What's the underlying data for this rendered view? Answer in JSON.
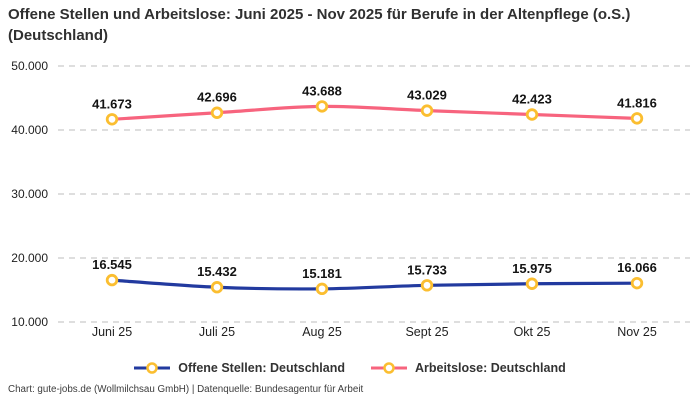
{
  "header": {
    "title": "Offene Stellen und Arbeitslose: Juni 2025 - Nov 2025 für Berufe in der Altenpflege (o.S.) (Deutschland)"
  },
  "footer": {
    "attribution": "Chart: gute-jobs.de (Wollmilchsau GmbH) | Datenquelle: Bundesagentur für Arbeit"
  },
  "colors": {
    "open_positions_line": "#223a9f",
    "unemployed_line": "#f7647e",
    "marker_ring": "#fbbe30",
    "marker_fill": "#ffffff",
    "gridline": "#c9c9c9",
    "title_text": "#303030",
    "background": "#ffffff"
  },
  "legend": {
    "items": [
      {
        "label": "Offene Stellen: Deutschland",
        "color": "#223a9f"
      },
      {
        "label": "Arbeitslose: Deutschland",
        "color": "#f7647e"
      }
    ]
  },
  "chart_data": {
    "type": "line",
    "title": "Offene Stellen und Arbeitslose: Juni 2025 - Nov 2025 für Berufe in der Altenpflege (o.S.) (Deutschland)",
    "categories": [
      "Juni 25",
      "Juli 25",
      "Aug 25",
      "Sept 25",
      "Okt 25",
      "Nov 25"
    ],
    "series": [
      {
        "name": "Offene Stellen: Deutschland",
        "color": "#223a9f",
        "values": [
          16545,
          15432,
          15181,
          15733,
          15975,
          16066
        ],
        "labels": [
          "16.545",
          "15.432",
          "15.181",
          "15.733",
          "15.975",
          "16.066"
        ]
      },
      {
        "name": "Arbeitslose: Deutschland",
        "color": "#f7647e",
        "values": [
          41673,
          42696,
          43688,
          43029,
          42423,
          41816
        ],
        "labels": [
          "41.673",
          "42.696",
          "43.688",
          "43.029",
          "42.423",
          "41.816"
        ]
      }
    ],
    "y_ticks": [
      {
        "value": 50000,
        "label": "50.000"
      },
      {
        "value": 40000,
        "label": "40.000"
      },
      {
        "value": 30000,
        "label": "30.000"
      },
      {
        "value": 20000,
        "label": "20.000"
      },
      {
        "value": 10000,
        "label": "10.000"
      }
    ],
    "ylim": [
      10000,
      50000
    ],
    "xlabel": "",
    "ylabel": "",
    "grid": "horizontal dashed",
    "legend_position": "bottom",
    "marker": "open circle, yellow ring, white fill"
  }
}
